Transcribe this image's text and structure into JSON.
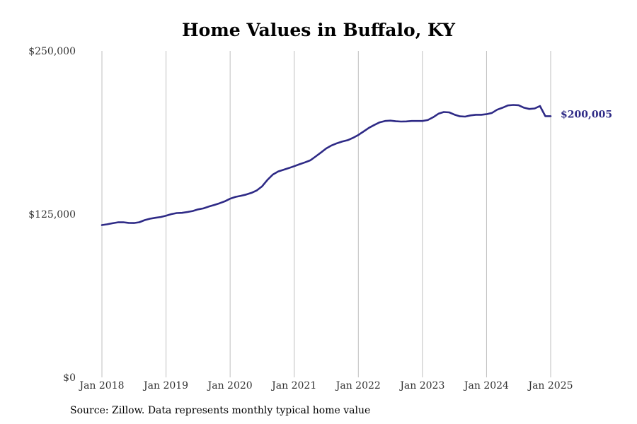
{
  "chart_data": {
    "type": "line",
    "title": "Home Values in Buffalo, KY",
    "source": "Source: Zillow. Data represents monthly typical home value",
    "xlabel": "",
    "ylabel": "",
    "xlim": [
      "2018-01",
      "2025-01"
    ],
    "ylim": [
      0,
      250000
    ],
    "grid": "vertical",
    "x_tick_labels": [
      "Jan 2018",
      "Jan 2019",
      "Jan 2020",
      "Jan 2021",
      "Jan 2022",
      "Jan 2023",
      "Jan 2024",
      "Jan 2025"
    ],
    "y_tick_labels": [
      "$0",
      "$125,000",
      "$250,000"
    ],
    "y_ticks": [
      0,
      125000,
      250000
    ],
    "end_label": "$200,005",
    "line_color": "#2e2a86",
    "grid_color": "#bfbfbf",
    "series": [
      {
        "x": [
          "2018-01",
          "2018-02",
          "2018-03",
          "2018-04",
          "2018-05",
          "2018-06",
          "2018-07",
          "2018-08",
          "2018-09",
          "2018-10",
          "2018-11",
          "2018-12",
          "2019-01",
          "2019-02",
          "2019-03",
          "2019-04",
          "2019-05",
          "2019-06",
          "2019-07",
          "2019-08",
          "2019-09",
          "2019-10",
          "2019-11",
          "2019-12",
          "2020-01",
          "2020-02",
          "2020-03",
          "2020-04",
          "2020-05",
          "2020-06",
          "2020-07",
          "2020-08",
          "2020-09",
          "2020-10",
          "2020-11",
          "2020-12",
          "2021-01",
          "2021-02",
          "2021-03",
          "2021-04",
          "2021-05",
          "2021-06",
          "2021-07",
          "2021-08",
          "2021-09",
          "2021-10",
          "2021-11",
          "2021-12",
          "2022-01",
          "2022-02",
          "2022-03",
          "2022-04",
          "2022-05",
          "2022-06",
          "2022-07",
          "2022-08",
          "2022-09",
          "2022-10",
          "2022-11",
          "2022-12",
          "2023-01",
          "2023-02",
          "2023-03",
          "2023-04",
          "2023-05",
          "2023-06",
          "2023-07",
          "2023-08",
          "2023-09",
          "2023-10",
          "2023-11",
          "2023-12",
          "2024-01",
          "2024-02",
          "2024-03",
          "2024-04",
          "2024-05",
          "2024-06",
          "2024-07",
          "2024-08",
          "2024-09",
          "2024-10",
          "2024-11",
          "2024-12",
          "2025-01"
        ],
        "values": [
          116600,
          117200,
          118000,
          118700,
          118800,
          118300,
          118200,
          118800,
          120400,
          121500,
          122200,
          122800,
          123800,
          125000,
          125800,
          126000,
          126600,
          127400,
          128600,
          129400,
          130800,
          132000,
          133300,
          134800,
          136800,
          138200,
          139000,
          140000,
          141300,
          143200,
          146300,
          151300,
          155300,
          157700,
          159000,
          160300,
          161700,
          163200,
          164600,
          166200,
          169100,
          172200,
          175300,
          177600,
          179300,
          180600,
          181600,
          183400,
          185600,
          188300,
          191100,
          193300,
          195300,
          196300,
          196600,
          196100,
          195900,
          196000,
          196300,
          196300,
          196300,
          197000,
          199200,
          201900,
          203200,
          202900,
          201200,
          199900,
          199700,
          200600,
          201100,
          201100,
          201500,
          202500,
          205000,
          206500,
          208200,
          208600,
          208400,
          206500,
          205500,
          205900,
          207800,
          200005,
          200005
        ]
      }
    ]
  }
}
